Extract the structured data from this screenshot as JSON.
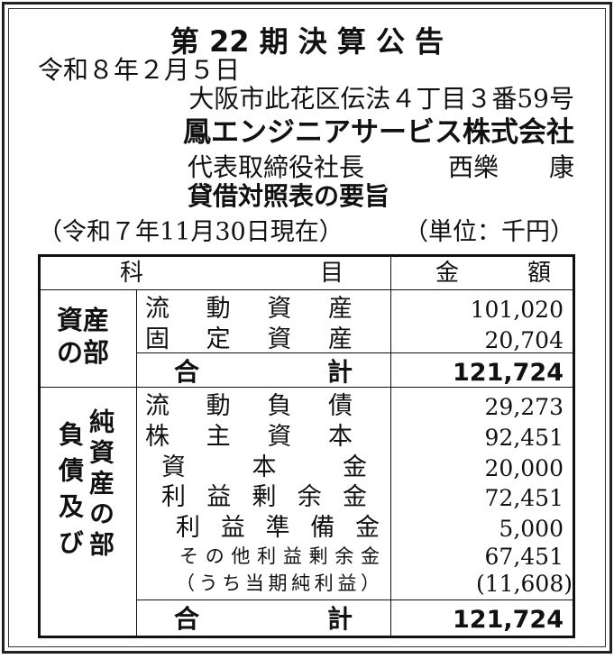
{
  "notice": {
    "title": "第 22 期 決 算 公 告",
    "date": "令和８年２月５日",
    "address": "大阪市此花区伝法４丁目３番59号",
    "company": "鳳エンジニアサービス株式会社",
    "representative_title": "代表取締役社長",
    "representative_name": "西樂　　康"
  },
  "balance_sheet": {
    "heading": "貸借対照表の要旨",
    "as_of": "（令和７年11月30日現在）",
    "unit": "（単位：千円）",
    "columns": {
      "item_left": "科",
      "item_right": "目",
      "amount_left": "金",
      "amount_right": "額"
    },
    "assets": {
      "section_label": "資産の部",
      "rows": [
        {
          "label": "流動資産",
          "value": "101,020"
        },
        {
          "label": "固定資産",
          "value": "20,704"
        }
      ],
      "total_left": "合",
      "total_right": "計",
      "total": "121,724"
    },
    "liabilities": {
      "section_label_left": "負債及び",
      "section_label_right": "純資産の部",
      "rows": [
        {
          "label": "流動負債",
          "value": "29,273"
        },
        {
          "label": "株主資本",
          "value": "92,451"
        },
        {
          "label": "資本金",
          "value": "20,000"
        },
        {
          "label": "利益剰余金",
          "value": "72,451"
        },
        {
          "label": "利益準備金",
          "value": "5,000"
        },
        {
          "label": "その他利益剰余金",
          "value": "67,451"
        },
        {
          "label": "（うち当期純利益）",
          "value": "(11,608)"
        }
      ],
      "total_left": "合",
      "total_right": "計",
      "total": "121,724"
    }
  }
}
